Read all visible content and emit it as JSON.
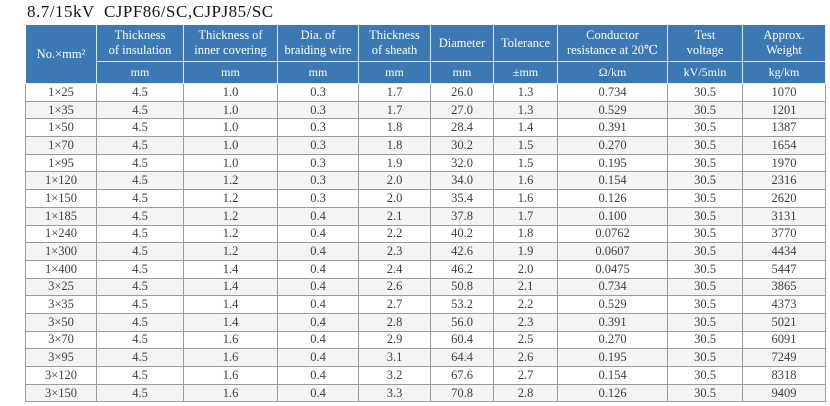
{
  "title": "8.7/15kV  CJPF86/SC,CJPJ85/SC",
  "colors": {
    "header_bg": "#3b78b4",
    "header_text": "#ffffff",
    "row_alt_bg": "#f4f4f4",
    "grid_line": "#9a9a9a",
    "body_text": "#3f3f3f"
  },
  "table": {
    "columns": [
      {
        "label_lines": [
          "No.×mm²"
        ],
        "unit": ""
      },
      {
        "label_lines": [
          "Thickness",
          "of insulation"
        ],
        "unit": "mm"
      },
      {
        "label_lines": [
          "Thickness of",
          "inner covering"
        ],
        "unit": "mm"
      },
      {
        "label_lines": [
          "Dia. of",
          "braiding wire"
        ],
        "unit": "mm"
      },
      {
        "label_lines": [
          "Thickness",
          "of sheath"
        ],
        "unit": "mm"
      },
      {
        "label_lines": [
          "Diameter"
        ],
        "unit": "mm"
      },
      {
        "label_lines": [
          "Tolerance"
        ],
        "unit": "±mm"
      },
      {
        "label_lines": [
          "Conductor",
          "resistance at 20℃"
        ],
        "unit": "Ω/km"
      },
      {
        "label_lines": [
          "Test",
          "voltage"
        ],
        "unit": "kV/5min"
      },
      {
        "label_lines": [
          "Approx.",
          "Weight"
        ],
        "unit": "kg/km"
      }
    ],
    "rows": [
      [
        "1×25",
        "4.5",
        "1.0",
        "0.3",
        "1.7",
        "26.0",
        "1.3",
        "0.734",
        "30.5",
        "1070"
      ],
      [
        "1×35",
        "4.5",
        "1.0",
        "0.3",
        "1.7",
        "27.0",
        "1.3",
        "0.529",
        "30.5",
        "1201"
      ],
      [
        "1×50",
        "4.5",
        "1.0",
        "0.3",
        "1.8",
        "28.4",
        "1.4",
        "0.391",
        "30.5",
        "1387"
      ],
      [
        "1×70",
        "4.5",
        "1.0",
        "0.3",
        "1.8",
        "30.2",
        "1.5",
        "0.270",
        "30.5",
        "1654"
      ],
      [
        "1×95",
        "4.5",
        "1.0",
        "0.3",
        "1.9",
        "32.0",
        "1.5",
        "0.195",
        "30.5",
        "1970"
      ],
      [
        "1×120",
        "4.5",
        "1.2",
        "0.3",
        "2.0",
        "34.0",
        "1.6",
        "0.154",
        "30.5",
        "2316"
      ],
      [
        "1×150",
        "4.5",
        "1.2",
        "0.3",
        "2.0",
        "35.4",
        "1.6",
        "0.126",
        "30.5",
        "2620"
      ],
      [
        "1×185",
        "4.5",
        "1.2",
        "0.4",
        "2.1",
        "37.8",
        "1.7",
        "0.100",
        "30.5",
        "3131"
      ],
      [
        "1×240",
        "4.5",
        "1.2",
        "0.4",
        "2.2",
        "40.2",
        "1.8",
        "0.0762",
        "30.5",
        "3770"
      ],
      [
        "1×300",
        "4.5",
        "1.2",
        "0.4",
        "2.3",
        "42.6",
        "1.9",
        "0.0607",
        "30.5",
        "4434"
      ],
      [
        "1×400",
        "4.5",
        "1.4",
        "0.4",
        "2.4",
        "46.2",
        "2.0",
        "0.0475",
        "30.5",
        "5447"
      ],
      [
        "3×25",
        "4.5",
        "1.4",
        "0.4",
        "2.6",
        "50.8",
        "2.1",
        "0.734",
        "30.5",
        "3865"
      ],
      [
        "3×35",
        "4.5",
        "1.4",
        "0.4",
        "2.7",
        "53.2",
        "2.2",
        "0.529",
        "30.5",
        "4373"
      ],
      [
        "3×50",
        "4.5",
        "1.4",
        "0.4",
        "2.8",
        "56.0",
        "2.3",
        "0.391",
        "30.5",
        "5021"
      ],
      [
        "3×70",
        "4.5",
        "1.6",
        "0.4",
        "2.9",
        "60.4",
        "2.5",
        "0.270",
        "30.5",
        "6091"
      ],
      [
        "3×95",
        "4.5",
        "1.6",
        "0.4",
        "3.1",
        "64.4",
        "2.6",
        "0.195",
        "30.5",
        "7249"
      ],
      [
        "3×120",
        "4.5",
        "1.6",
        "0.4",
        "3.2",
        "67.6",
        "2.7",
        "0.154",
        "30.5",
        "8318"
      ],
      [
        "3×150",
        "4.5",
        "1.6",
        "0.4",
        "3.3",
        "70.8",
        "2.8",
        "0.126",
        "30.5",
        "9409"
      ]
    ]
  }
}
